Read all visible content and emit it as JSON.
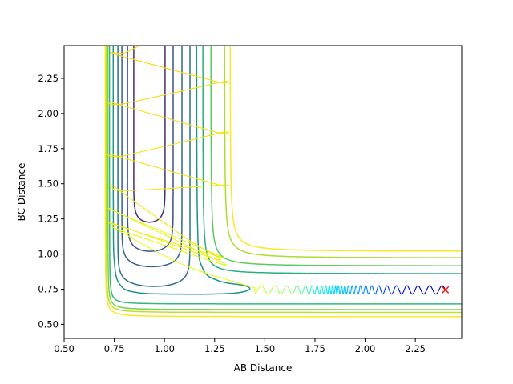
{
  "chart_data": {
    "type": "line",
    "title": "",
    "xlabel": "AB Distance",
    "ylabel": "BC Distance",
    "xlim": [
      0.5,
      2.481
    ],
    "ylim": [
      0.4,
      2.483
    ],
    "xticks": [
      "0.50",
      "0.75",
      "1.00",
      "1.25",
      "1.50",
      "1.75",
      "2.00",
      "2.25"
    ],
    "yticks": [
      "0.50",
      "0.75",
      "1.00",
      "1.25",
      "1.50",
      "1.75",
      "2.00",
      "2.25"
    ],
    "grid": false,
    "contours_lower_left": [
      {
        "x_asymptote": 0.705,
        "y_asymptote": 0.555,
        "sharpness": 0.09,
        "color": "#fde725"
      },
      {
        "x_asymptote": 0.71,
        "y_asymptote": 0.585,
        "sharpness": 0.085,
        "color": "#c2df23"
      },
      {
        "x_asymptote": 0.718,
        "y_asymptote": 0.605,
        "sharpness": 0.08,
        "color": "#7ad151"
      },
      {
        "x_asymptote": 0.726,
        "y_asymptote": 0.645,
        "sharpness": 0.075,
        "color": "#35b779"
      }
    ],
    "contours_upper_right": [
      {
        "x_asymptote": 1.327,
        "y_asymptote": 1.02,
        "sharpness": 0.16,
        "color": "#fde725"
      },
      {
        "x_asymptote": 1.299,
        "y_asymptote": 0.973,
        "sharpness": 0.16,
        "color": "#addc30"
      },
      {
        "x_asymptote": 1.231,
        "y_asymptote": 0.916,
        "sharpness": 0.15,
        "color": "#5ec962"
      },
      {
        "x_asymptote": 1.191,
        "y_asymptote": 0.86,
        "sharpness": 0.14,
        "color": "#28ae80"
      }
    ],
    "contours_channel": [
      {
        "x_left": 0.847,
        "x_right": 1.003,
        "y_bottom": 1.227,
        "color": "#472c7a"
      },
      {
        "x_left": 0.816,
        "x_right": 1.043,
        "y_bottom": 1.02,
        "color": "#3b528b"
      },
      {
        "x_left": 0.788,
        "x_right": 1.087,
        "y_bottom": 0.91,
        "color": "#33638d"
      },
      {
        "x_left": 0.768,
        "x_right": 1.127,
        "y_bottom": 0.77,
        "color": "#2c728e"
      }
    ],
    "contour_saddle": {
      "color": "#21918c",
      "points": [
        [
          0.745,
          2.49
        ],
        [
          0.745,
          1.4
        ],
        [
          0.75,
          0.95
        ],
        [
          0.78,
          0.78
        ],
        [
          0.87,
          0.725
        ],
        [
          1.1,
          0.715
        ],
        [
          1.33,
          0.72
        ],
        [
          1.42,
          0.745
        ],
        [
          1.4,
          0.775
        ],
        [
          1.27,
          0.81
        ],
        [
          1.19,
          0.9
        ],
        [
          1.165,
          1.2
        ],
        [
          1.16,
          2.49
        ]
      ]
    },
    "trajectory": {
      "start": [
        2.4,
        0.745
      ],
      "valley_y": 0.745,
      "amplitude": 0.03,
      "period_profile": [
        [
          2.4,
          0.065
        ],
        [
          2.15,
          0.05
        ],
        [
          1.95,
          0.02
        ],
        [
          1.85,
          0.014
        ],
        [
          1.75,
          0.025
        ],
        [
          1.65,
          0.05
        ],
        [
          1.5,
          0.07
        ],
        [
          1.45,
          0.07
        ]
      ],
      "waypoints": [
        [
          1.45,
          0.76
        ],
        [
          1.1,
          0.92
        ],
        [
          0.77,
          1.17
        ],
        [
          0.8,
          1.16
        ],
        [
          1.28,
          0.93
        ],
        [
          1.2,
          1.0
        ],
        [
          0.76,
          1.3
        ],
        [
          0.79,
          1.28
        ],
        [
          1.22,
          1.02
        ],
        [
          1.25,
          0.99
        ],
        [
          0.77,
          1.2
        ],
        [
          0.8,
          1.19
        ],
        [
          1.27,
          0.96
        ],
        [
          1.1,
          1.12
        ],
        [
          0.76,
          1.47
        ],
        [
          0.8,
          1.45
        ],
        [
          1.27,
          1.49
        ],
        [
          1.25,
          1.5
        ],
        [
          0.76,
          1.7
        ],
        [
          0.8,
          1.7
        ],
        [
          1.27,
          1.86
        ],
        [
          1.25,
          1.87
        ],
        [
          0.76,
          2.07
        ],
        [
          0.8,
          2.07
        ],
        [
          1.27,
          2.22
        ],
        [
          1.25,
          2.23
        ],
        [
          0.76,
          2.42
        ],
        [
          0.8,
          2.43
        ],
        [
          0.9,
          2.5
        ]
      ],
      "colormap": [
        "#00007f",
        "#0000ff",
        "#007fff",
        "#00e5ff",
        "#7fff7f",
        "#e5ff19",
        "#ffd700"
      ]
    },
    "end_marker": {
      "x": 2.4,
      "y": 0.745,
      "symbol": "x",
      "color": "#ff0000"
    }
  }
}
